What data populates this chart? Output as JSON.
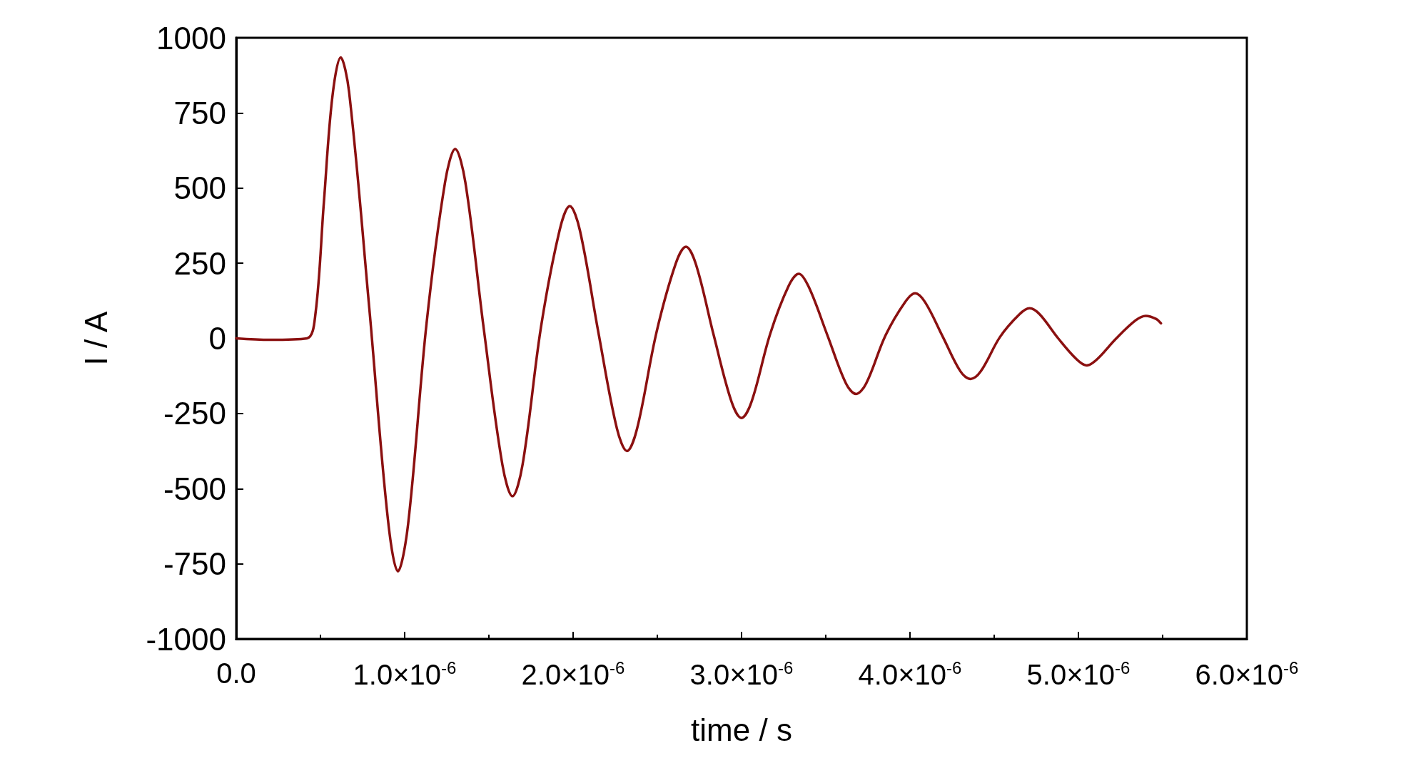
{
  "chart_data": {
    "type": "line",
    "xlabel": "time / s",
    "ylabel": "I / A",
    "x": [
      0,
      2e-07,
      4.2e-07,
      4.7e-07,
      5.2e-07,
      5.7e-07,
      6.2e-07,
      6.7e-07,
      7.9e-07,
      9e-07,
      9.6e-07,
      1.02e-06,
      1.13e-06,
      1.24e-06,
      1.3e-06,
      1.36e-06,
      1.47e-06,
      1.58e-06,
      1.64e-06,
      1.7e-06,
      1.81e-06,
      1.92e-06,
      1.98e-06,
      2.04e-06,
      2.15e-06,
      2.26e-06,
      2.32e-06,
      2.38e-06,
      2.495e-06,
      2.61e-06,
      2.67e-06,
      2.73e-06,
      2.835e-06,
      2.94e-06,
      3e-06,
      3.06e-06,
      3.17e-06,
      3.28e-06,
      3.34e-06,
      3.4e-06,
      3.51e-06,
      3.62e-06,
      3.68e-06,
      3.74e-06,
      3.855e-06,
      3.97e-06,
      4.03e-06,
      4.09e-06,
      4.195e-06,
      4.3e-06,
      4.36e-06,
      4.42e-06,
      4.535e-06,
      4.65e-06,
      4.71e-06,
      4.77e-06,
      4.88e-06,
      4.99e-06,
      5.05e-06,
      5.11e-06,
      5.225e-06,
      5.34e-06,
      5.4e-06,
      5.46e-06,
      5.49e-06
    ],
    "series": [
      {
        "color": "#8b1010",
        "values": [
          0,
          -5,
          0,
          80,
          450,
          800,
          935,
          820,
          100,
          -600,
          -775,
          -620,
          50,
          520,
          630,
          520,
          30,
          -420,
          -525,
          -420,
          40,
          360,
          440,
          360,
          20,
          -300,
          -375,
          -300,
          20,
          250,
          305,
          245,
          10,
          -210,
          -265,
          -210,
          15,
          175,
          215,
          170,
          10,
          -150,
          -185,
          -150,
          10,
          120,
          150,
          120,
          5,
          -110,
          -135,
          -110,
          5,
          80,
          100,
          80,
          0,
          -70,
          -90,
          -70,
          0,
          60,
          75,
          65,
          50
        ]
      }
    ],
    "xlim": [
      0,
      6e-06
    ],
    "xticks": [
      {
        "value": 0,
        "label": "0.0"
      },
      {
        "value": 1e-06,
        "label": "1.0×10$^{-6}$"
      },
      {
        "value": 2e-06,
        "label": "2.0×10$^{-6}$"
      },
      {
        "value": 3e-06,
        "label": "3.0×10$^{-6}$"
      },
      {
        "value": 4e-06,
        "label": "4.0×10$^{-6}$"
      },
      {
        "value": 5e-06,
        "label": "5.0×10$^{-6}$"
      },
      {
        "value": 6e-06,
        "label": "6.0×10$^{-6}$"
      }
    ],
    "ylim": [
      -1000,
      1000
    ],
    "yticks": [
      -1000,
      -750,
      -500,
      -250,
      0,
      250,
      500,
      750,
      1000
    ],
    "grid": false,
    "marker": "none",
    "line_style": "solid"
  }
}
